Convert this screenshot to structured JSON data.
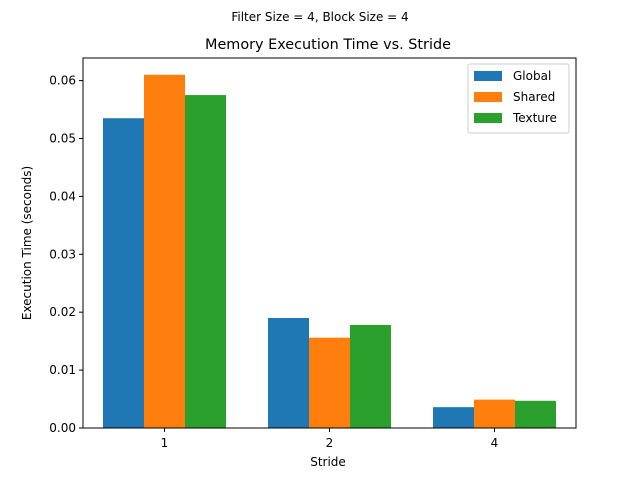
{
  "chart_data": {
    "type": "bar",
    "suptitle": "Filter Size = 4, Block Size = 4",
    "title": "Memory Execution Time vs. Stride",
    "xlabel": "Stride",
    "ylabel": "Execution Time (seconds)",
    "categories": [
      "1",
      "2",
      "4"
    ],
    "ylim": [
      0,
      0.0639
    ],
    "yticks": [
      0.0,
      0.01,
      0.02,
      0.03,
      0.04,
      0.05,
      0.06
    ],
    "ytick_labels": [
      "0.00",
      "0.01",
      "0.02",
      "0.03",
      "0.04",
      "0.05",
      "0.06"
    ],
    "legend_position": "top-right",
    "grid": false,
    "series": [
      {
        "name": "Global",
        "color": "#1f77b4",
        "values": [
          0.0535,
          0.019,
          0.0036
        ]
      },
      {
        "name": "Shared",
        "color": "#ff7f0e",
        "values": [
          0.061,
          0.0156,
          0.0049
        ]
      },
      {
        "name": "Texture",
        "color": "#2ca02c",
        "values": [
          0.0575,
          0.0178,
          0.0047
        ]
      }
    ]
  }
}
